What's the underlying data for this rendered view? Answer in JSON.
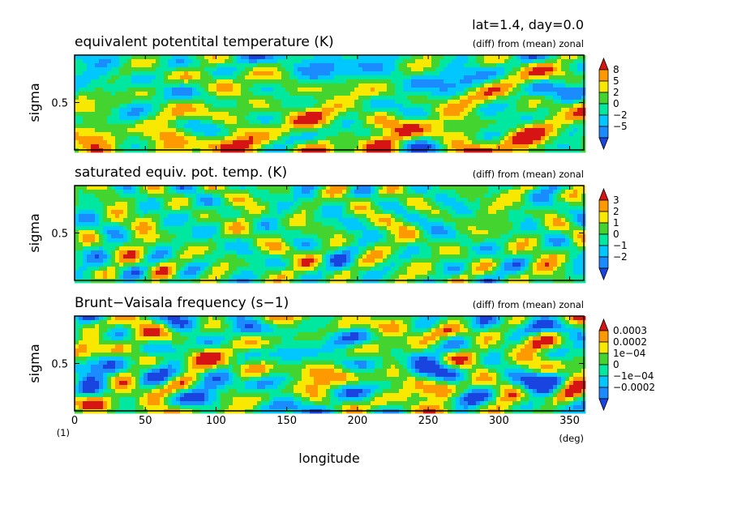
{
  "header": {
    "label": "lat=1.4, day=0.0"
  },
  "xaxis": {
    "label": "longitude",
    "unit": "(deg)",
    "ticks": [
      0,
      50,
      100,
      150,
      200,
      250,
      300,
      350
    ],
    "range": [
      0,
      360
    ]
  },
  "yunit": "(1)",
  "chart_data": [
    {
      "type": "heatmap",
      "title": "equivalent potentital temperature (K)",
      "subtitle": "(diff) from (mean) zonal",
      "ylabel": "sigma",
      "yticks": [
        "0.5"
      ],
      "xlim": [
        0,
        360
      ],
      "ylim": [
        1,
        0.15
      ],
      "colorbar_labels": [
        "8",
        "5",
        "2",
        "0",
        "−2",
        "−5"
      ],
      "colorbar_colors": [
        "#d71414",
        "#ff9900",
        "#f8e800",
        "#44d430",
        "#00e8a0",
        "#00c8ff",
        "#1a8cff",
        "#1a44e0"
      ],
      "legend": "right"
    },
    {
      "type": "heatmap",
      "title": "saturated equiv. pot. temp. (K)",
      "subtitle": "(diff) from (mean) zonal",
      "ylabel": "sigma",
      "yticks": [
        "0.5"
      ],
      "xlim": [
        0,
        360
      ],
      "ylim": [
        1,
        0.15
      ],
      "colorbar_labels": [
        "3",
        "2",
        "1",
        "0",
        "−1",
        "−2"
      ],
      "colorbar_colors": [
        "#d71414",
        "#ff9900",
        "#f8e800",
        "#44d430",
        "#00e8a0",
        "#00c8ff",
        "#1a8cff",
        "#1a44e0"
      ],
      "legend": "right"
    },
    {
      "type": "heatmap",
      "title": "Brunt−Vaisala frequency (s−1)",
      "subtitle": "(diff) from (mean) zonal",
      "ylabel": "sigma",
      "yticks": [
        "0.5"
      ],
      "xlim": [
        0,
        360
      ],
      "ylim": [
        1,
        0.15
      ],
      "colorbar_labels": [
        "0.0003",
        "0.0002",
        "1e−04",
        "0",
        "−1e−04",
        "−0.0002"
      ],
      "colorbar_colors": [
        "#d71414",
        "#ff9900",
        "#f8e800",
        "#44d430",
        "#00e8a0",
        "#00c8ff",
        "#1a8cff",
        "#1a44e0"
      ],
      "legend": "right"
    }
  ]
}
